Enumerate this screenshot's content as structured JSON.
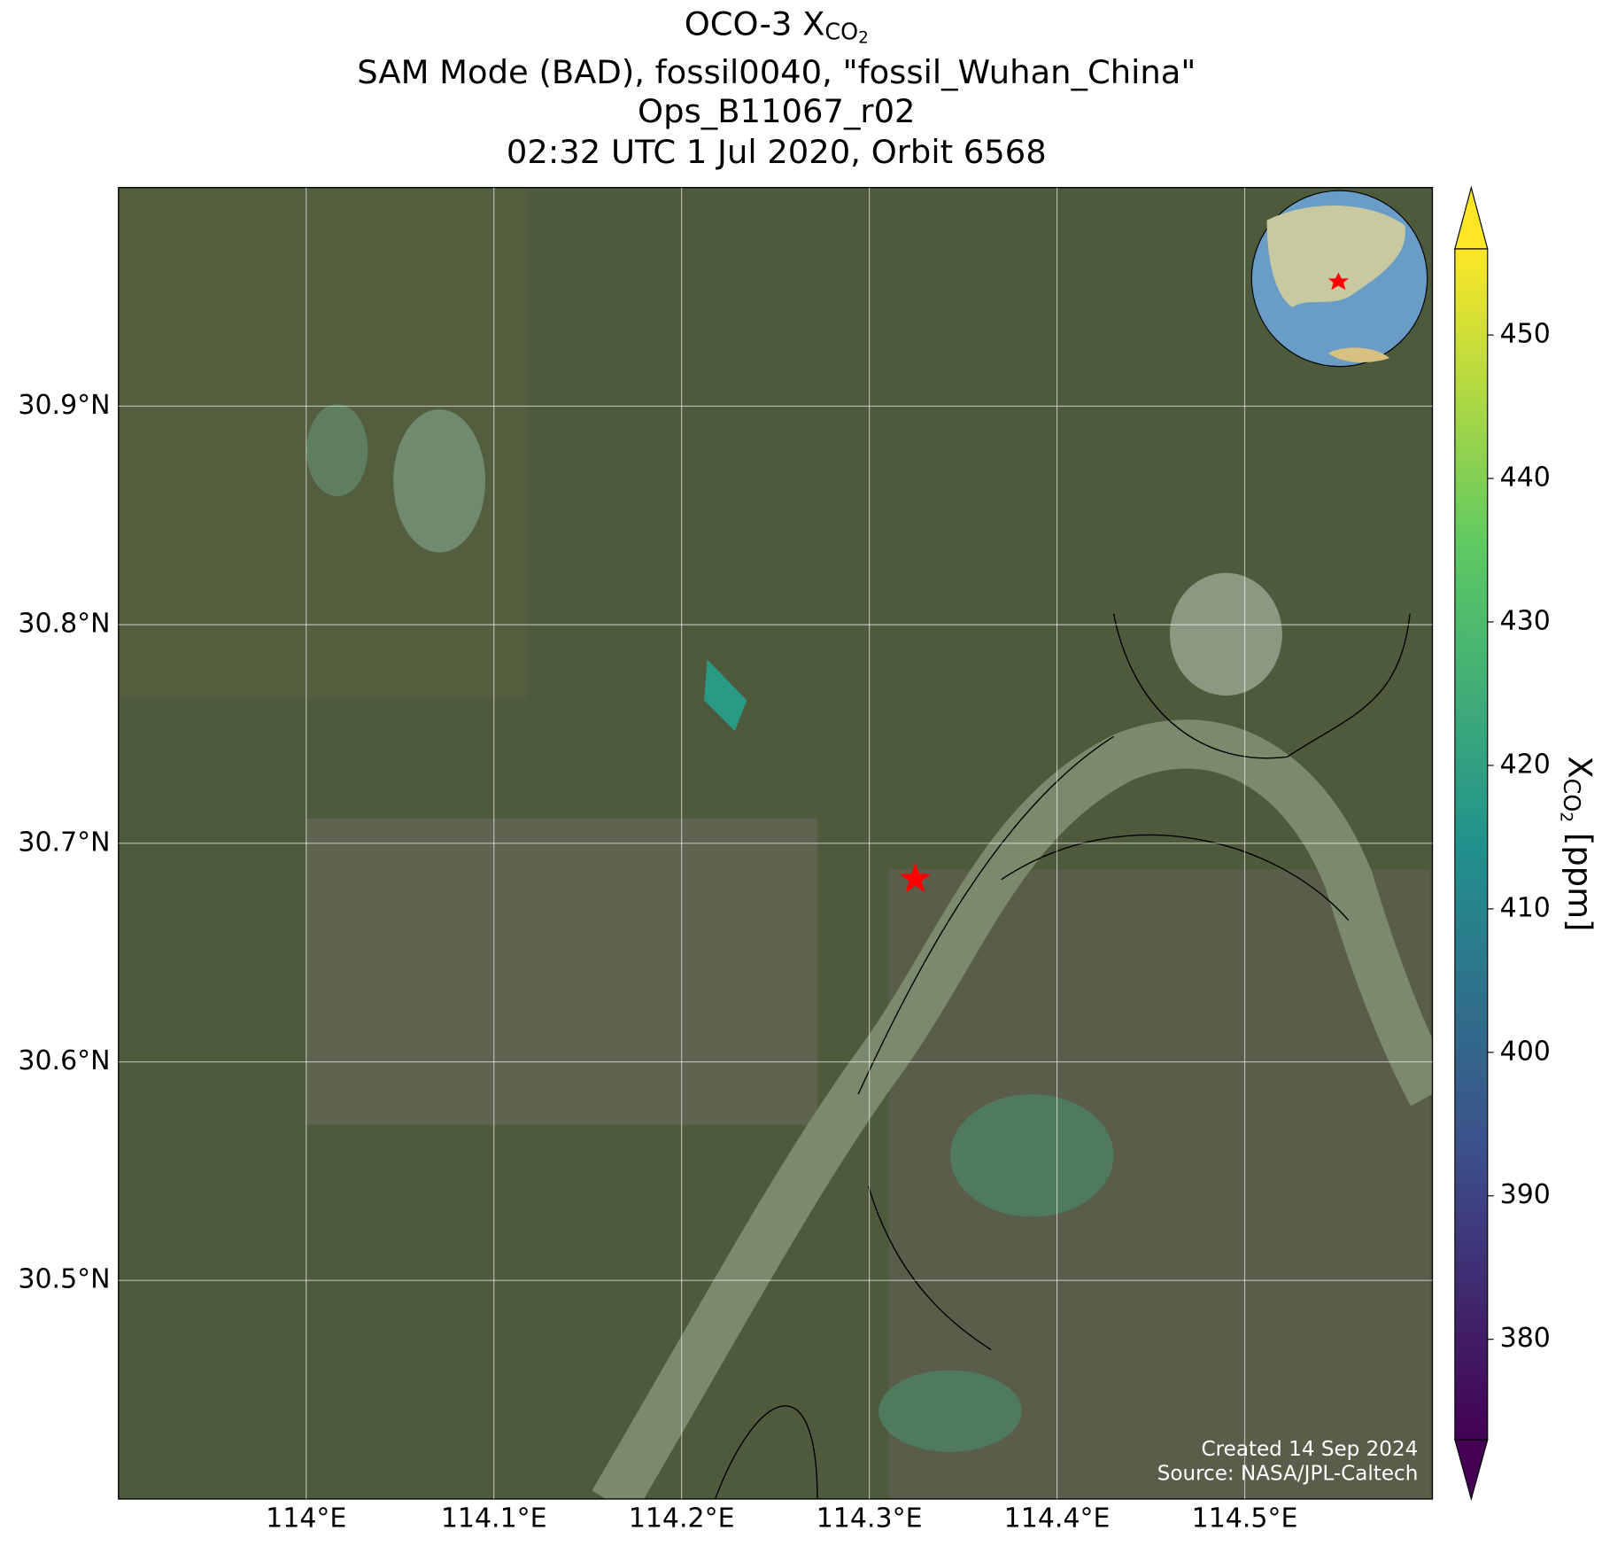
{
  "chart_data": {
    "type": "map",
    "title": {
      "text": "OCO-3 X",
      "subscript": "CO",
      "subsubscript": "2"
    },
    "subtitle_lines": [
      "SAM Mode (BAD), fossil0040, \"fossil_Wuhan_China\"",
      "Ops_B11067_r02",
      "02:32 UTC 1 Jul 2020, Orbit 6568"
    ],
    "xlim": [
      113.9,
      114.6
    ],
    "ylim": [
      30.4,
      31.0
    ],
    "xticks": [
      {
        "value": 114,
        "label": "114°E"
      },
      {
        "value": 114.1,
        "label": "114.1°E"
      },
      {
        "value": 114.2,
        "label": "114.2°E"
      },
      {
        "value": 114.3,
        "label": "114.3°E"
      },
      {
        "value": 114.4,
        "label": "114.4°E"
      },
      {
        "value": 114.5,
        "label": "114.5°E"
      }
    ],
    "yticks": [
      {
        "value": 30.5,
        "label": "30.5°N"
      },
      {
        "value": 30.6,
        "label": "30.6°N"
      },
      {
        "value": 30.7,
        "label": "30.7°N"
      },
      {
        "value": 30.8,
        "label": "30.8°N"
      },
      {
        "value": 30.9,
        "label": "30.9°N"
      }
    ],
    "grid": true,
    "footprints": [
      {
        "lon": [
          114.2136,
          114.2348,
          114.2283,
          114.212
        ],
        "lat": [
          30.7841,
          30.7654,
          30.7514,
          30.7654
        ],
        "value": 418
      }
    ],
    "star": {
      "lon": 114.3245,
      "lat": 30.6836,
      "color": "#ff0000"
    },
    "colorbar": {
      "label": {
        "text": "X",
        "subscript": "CO",
        "subsubscript": "2",
        "unit": " [ppm]"
      },
      "clim": [
        373,
        456
      ],
      "ticks": [
        380,
        390,
        400,
        410,
        420,
        430,
        440,
        450
      ]
    },
    "credits": [
      "Created 14 Sep 2024",
      "Source: NASA/JPL-Caltech"
    ]
  }
}
